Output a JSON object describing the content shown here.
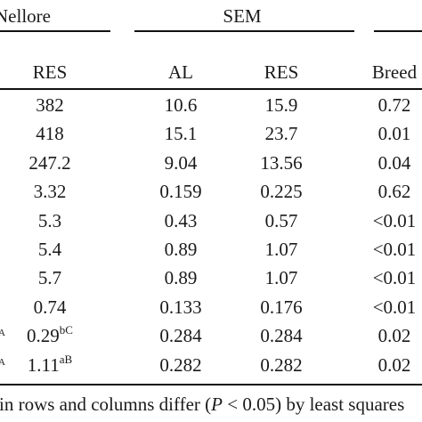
{
  "table": {
    "group_headers": {
      "nellore": "Nellore",
      "sem": "SEM"
    },
    "column_headers": {
      "res_nellore": "RES",
      "al": "AL",
      "res_sem": "RES",
      "breed": "Breed"
    },
    "rows": [
      {
        "res": "382",
        "res_sup": "",
        "al": "10.6",
        "res_sem": "15.9",
        "breed": "0.72",
        "mark": ""
      },
      {
        "res": "418",
        "res_sup": "",
        "al": "15.1",
        "res_sem": "23.7",
        "breed": "0.01",
        "mark": ""
      },
      {
        "res": "247.2",
        "res_sup": "",
        "al": "9.04",
        "res_sem": "13.56",
        "breed": "0.04",
        "mark": ""
      },
      {
        "res": "3.32",
        "res_sup": "",
        "al": "0.159",
        "res_sem": "0.225",
        "breed": "0.62",
        "mark": ""
      },
      {
        "res": "5.3",
        "res_sup": "",
        "al": "0.43",
        "res_sem": "0.57",
        "breed": "<0.01",
        "mark": ""
      },
      {
        "res": "5.4",
        "res_sup": "",
        "al": "0.89",
        "res_sem": "1.07",
        "breed": "<0.01",
        "mark": ""
      },
      {
        "res": "5.7",
        "res_sup": "",
        "al": "0.89",
        "res_sem": "1.07",
        "breed": "<0.01",
        "mark": ""
      },
      {
        "res": "0.74",
        "res_sup": "",
        "al": "0.133",
        "res_sem": "0.176",
        "breed": "<0.01",
        "mark": ""
      },
      {
        "res": "0.29",
        "res_sup": "bC",
        "al": "0.284",
        "res_sem": "0.284",
        "breed": "0.02",
        "mark": "A"
      },
      {
        "res": "1.11",
        "res_sup": "aB",
        "al": "0.282",
        "res_sem": "0.282",
        "breed": "0.02",
        "mark": "A"
      }
    ],
    "footnote": {
      "prefix": "in rows and columns differ (",
      "p_symbol": "P",
      "suffix": " < 0.05) by least squares"
    }
  }
}
